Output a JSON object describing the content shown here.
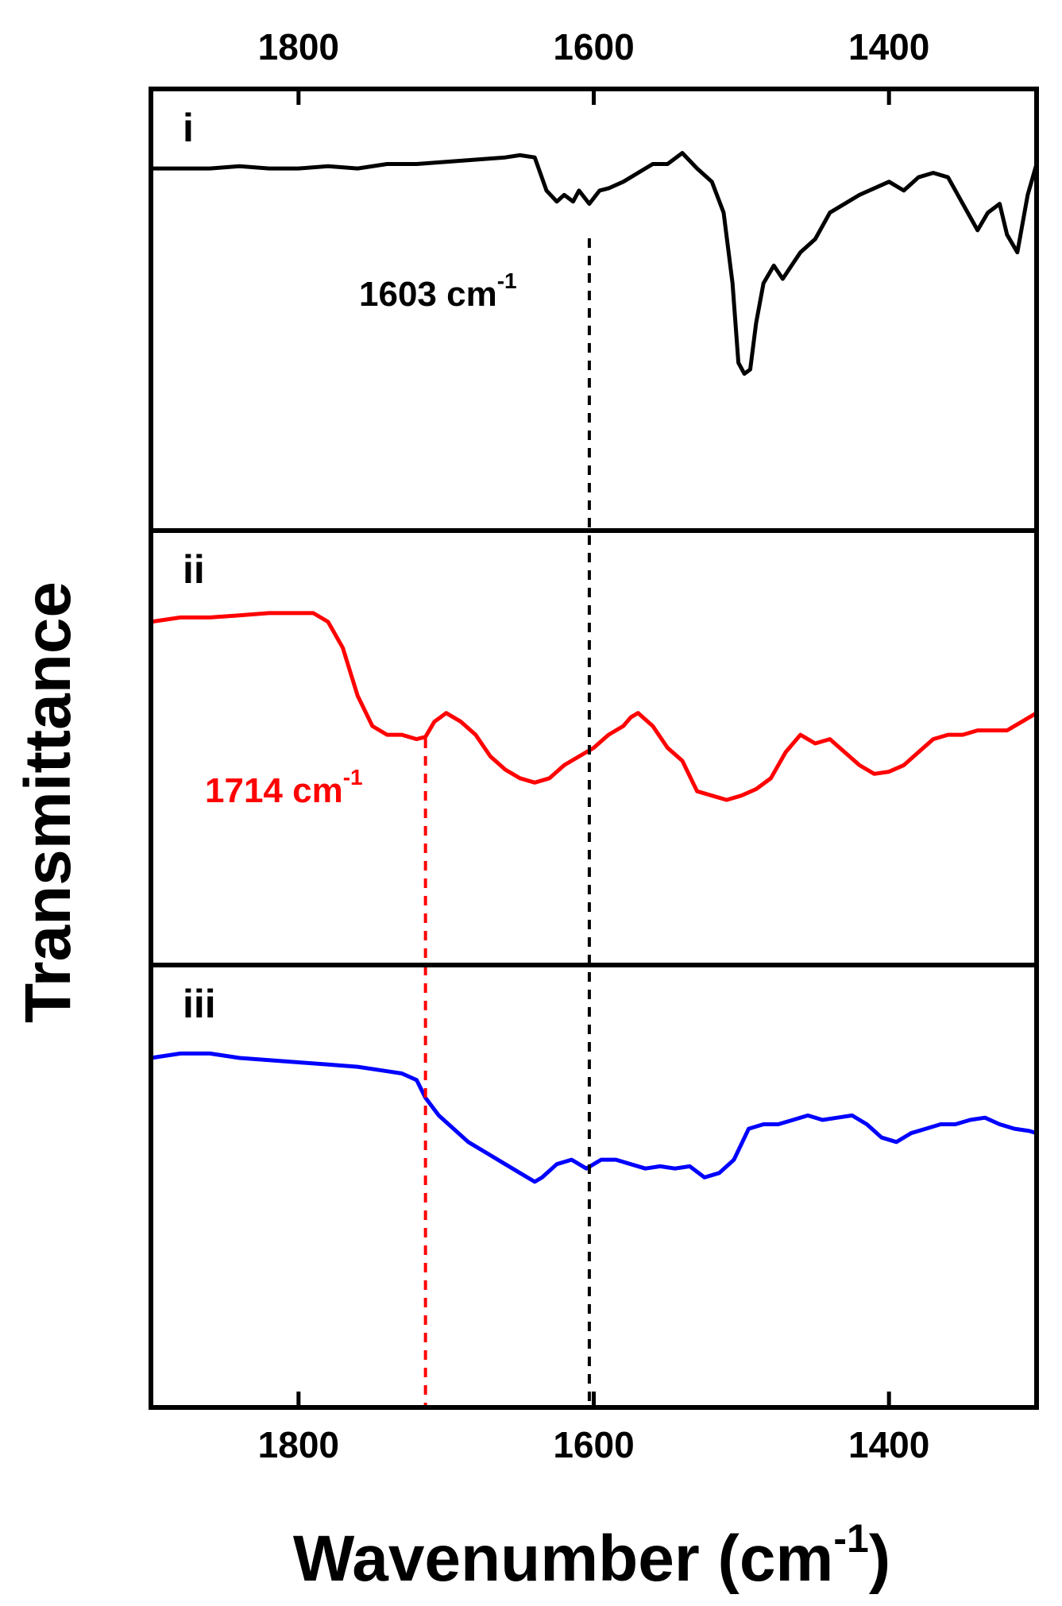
{
  "chart_data": {
    "type": "line",
    "xlabel": "Wavenumber (cm",
    "xlabel_sup": "-1",
    "xlabel_end": ")",
    "ylabel": "Transmittance",
    "xlim": [
      1900,
      1300
    ],
    "x_reversed": true,
    "x_ticks": [
      1800,
      1600,
      1400
    ],
    "x_tick_labels": [
      "1800",
      "1600",
      "1400"
    ],
    "ticks_on_top": true,
    "grid": false,
    "legend": "none",
    "panels": [
      {
        "label": "i",
        "color": "#000000",
        "ylim": [
          0,
          1
        ],
        "annotation": {
          "text": "1603 cm",
          "sup": "-1",
          "x": 1603,
          "color": "#000000"
        },
        "series": {
          "x": [
            1900,
            1880,
            1860,
            1840,
            1820,
            1800,
            1780,
            1760,
            1740,
            1720,
            1700,
            1680,
            1660,
            1650,
            1640,
            1632,
            1625,
            1620,
            1614,
            1610,
            1603,
            1596,
            1590,
            1580,
            1570,
            1560,
            1550,
            1540,
            1530,
            1520,
            1512,
            1506,
            1502,
            1498,
            1494,
            1490,
            1485,
            1478,
            1472,
            1466,
            1460,
            1450,
            1440,
            1420,
            1400,
            1390,
            1380,
            1370,
            1360,
            1350,
            1340,
            1333,
            1325,
            1320,
            1313,
            1306,
            1300
          ],
          "y": [
            0.82,
            0.82,
            0.82,
            0.825,
            0.82,
            0.82,
            0.825,
            0.82,
            0.83,
            0.83,
            0.835,
            0.84,
            0.845,
            0.85,
            0.845,
            0.77,
            0.745,
            0.76,
            0.745,
            0.77,
            0.74,
            0.77,
            0.775,
            0.79,
            0.81,
            0.83,
            0.83,
            0.855,
            0.82,
            0.79,
            0.72,
            0.56,
            0.38,
            0.355,
            0.365,
            0.47,
            0.56,
            0.6,
            0.57,
            0.6,
            0.63,
            0.66,
            0.72,
            0.76,
            0.79,
            0.77,
            0.8,
            0.81,
            0.8,
            0.74,
            0.68,
            0.72,
            0.74,
            0.67,
            0.63,
            0.76,
            0.83
          ]
        }
      },
      {
        "label": "ii",
        "color": "#ff0000",
        "ylim": [
          0,
          1
        ],
        "annotation": {
          "text": "1714 cm",
          "sup": "-1",
          "x": 1714,
          "color": "#ff0000"
        },
        "series": {
          "x": [
            1900,
            1880,
            1860,
            1840,
            1820,
            1790,
            1780,
            1770,
            1760,
            1750,
            1740,
            1730,
            1720,
            1714,
            1708,
            1700,
            1690,
            1680,
            1670,
            1660,
            1650,
            1640,
            1630,
            1620,
            1610,
            1600,
            1590,
            1580,
            1575,
            1570,
            1560,
            1550,
            1540,
            1530,
            1520,
            1510,
            1500,
            1490,
            1480,
            1470,
            1460,
            1450,
            1440,
            1430,
            1420,
            1410,
            1400,
            1390,
            1380,
            1370,
            1360,
            1350,
            1340,
            1330,
            1320,
            1310,
            1300
          ],
          "y": [
            0.79,
            0.8,
            0.8,
            0.805,
            0.81,
            0.81,
            0.79,
            0.73,
            0.62,
            0.55,
            0.53,
            0.53,
            0.52,
            0.525,
            0.56,
            0.58,
            0.56,
            0.53,
            0.48,
            0.45,
            0.43,
            0.42,
            0.43,
            0.46,
            0.48,
            0.5,
            0.53,
            0.55,
            0.57,
            0.58,
            0.55,
            0.5,
            0.47,
            0.4,
            0.39,
            0.38,
            0.39,
            0.405,
            0.43,
            0.49,
            0.53,
            0.51,
            0.52,
            0.49,
            0.46,
            0.44,
            0.445,
            0.46,
            0.49,
            0.52,
            0.53,
            0.53,
            0.54,
            0.54,
            0.54,
            0.56,
            0.58
          ]
        }
      },
      {
        "label": "iii",
        "color": "#0000ff",
        "ylim": [
          0,
          1
        ],
        "annotation": null,
        "series": {
          "x": [
            1900,
            1880,
            1860,
            1840,
            1820,
            1800,
            1780,
            1760,
            1740,
            1730,
            1720,
            1714,
            1705,
            1695,
            1685,
            1670,
            1660,
            1650,
            1640,
            1635,
            1625,
            1615,
            1605,
            1595,
            1585,
            1575,
            1565,
            1555,
            1545,
            1535,
            1525,
            1515,
            1505,
            1495,
            1485,
            1475,
            1465,
            1455,
            1445,
            1435,
            1425,
            1415,
            1405,
            1395,
            1385,
            1375,
            1365,
            1355,
            1345,
            1335,
            1325,
            1315,
            1305,
            1300
          ],
          "y": [
            0.79,
            0.8,
            0.8,
            0.79,
            0.785,
            0.78,
            0.775,
            0.77,
            0.76,
            0.755,
            0.74,
            0.7,
            0.66,
            0.63,
            0.6,
            0.57,
            0.55,
            0.53,
            0.51,
            0.52,
            0.55,
            0.56,
            0.54,
            0.56,
            0.56,
            0.55,
            0.54,
            0.545,
            0.54,
            0.545,
            0.52,
            0.53,
            0.56,
            0.63,
            0.64,
            0.64,
            0.65,
            0.66,
            0.65,
            0.655,
            0.66,
            0.64,
            0.61,
            0.6,
            0.62,
            0.63,
            0.64,
            0.64,
            0.65,
            0.655,
            0.64,
            0.63,
            0.625,
            0.62
          ]
        }
      }
    ]
  }
}
